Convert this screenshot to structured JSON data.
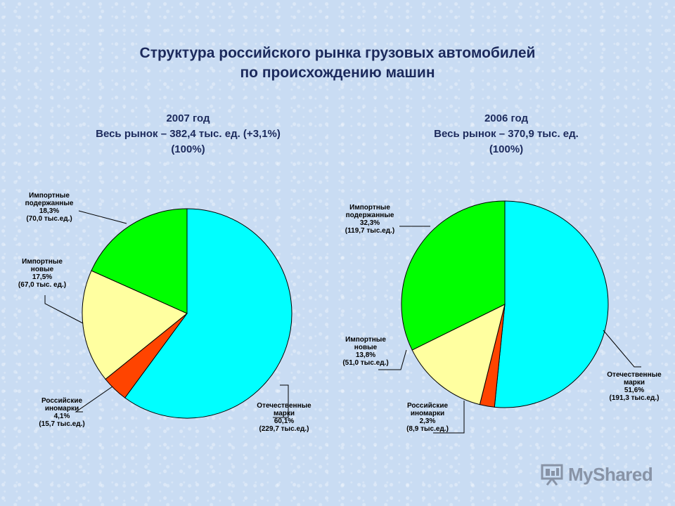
{
  "title_line1": "Структура российского рынка грузовых автомобилей",
  "title_line2": "по происхождению машин",
  "chart_data": [
    {
      "type": "pie",
      "year": "2007 год",
      "market_line1": "Весь рынок – 382,4 тыс. ед. (+3,1%)",
      "market_line2": "(100%)",
      "slices": [
        {
          "label_lines": [
            "Отечественные",
            "марки",
            "60,1%",
            "(229,7 тыс.ед.)"
          ],
          "value": 60.1,
          "color": "#00ffff"
        },
        {
          "label_lines": [
            "Российские",
            "иномарки",
            "4,1%",
            "(15,7 тыс.ед.)"
          ],
          "value": 4.1,
          "color": "#ff4400"
        },
        {
          "label_lines": [
            "Импортные",
            "новые",
            "17,5%",
            "(67,0 тыс. ед.)"
          ],
          "value": 17.5,
          "color": "#ffffa0"
        },
        {
          "label_lines": [
            "Импортные",
            "подержанные",
            "18,3%",
            "(70,0 тыс.ед.)"
          ],
          "value": 18.3,
          "color": "#00ff00"
        }
      ]
    },
    {
      "type": "pie",
      "year": "2006 год",
      "market_line1": "Весь рынок – 370,9 тыс. ед.",
      "market_line2": "(100%)",
      "slices": [
        {
          "label_lines": [
            "Отечественные",
            "марки",
            "51,6%",
            "(191,3 тыс.ед.)"
          ],
          "value": 51.6,
          "color": "#00ffff"
        },
        {
          "label_lines": [
            "Российские",
            "иномарки",
            "2,3%",
            "(8,9 тыс.ед.)"
          ],
          "value": 2.3,
          "color": "#ff4400"
        },
        {
          "label_lines": [
            "Импортные",
            "новые",
            "13,8%",
            "(51,0 тыс.ед.)"
          ],
          "value": 13.8,
          "color": "#ffffa0"
        },
        {
          "label_lines": [
            "Импортные",
            "подержанные",
            "32,3%",
            "(119,7 тыс.ед.)"
          ],
          "value": 32.3,
          "color": "#00ff00"
        }
      ]
    }
  ],
  "logo_text": "MyShared"
}
